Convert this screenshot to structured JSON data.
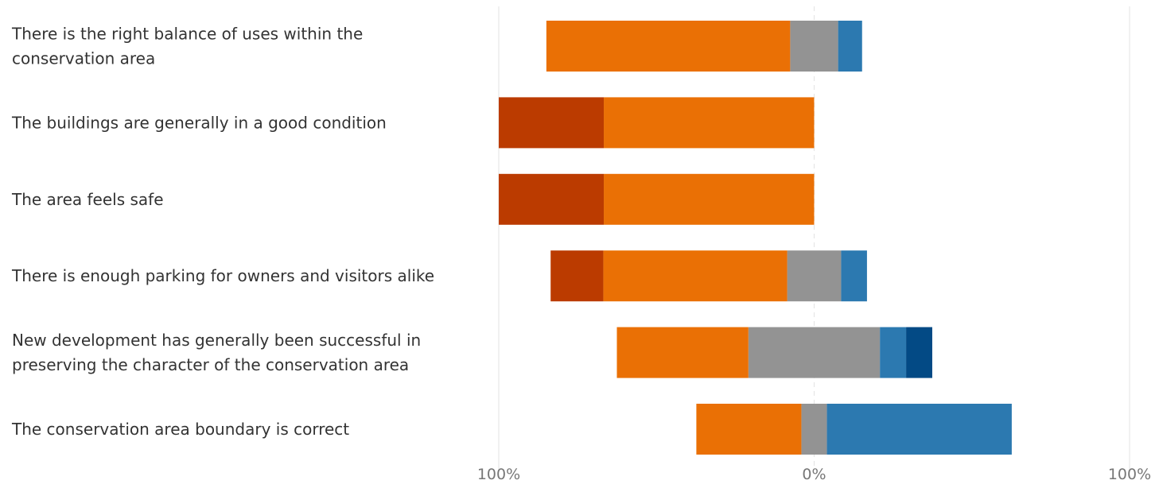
{
  "chart_data": {
    "type": "bar",
    "orientation": "horizontal",
    "stacked": "diverging",
    "categories": [
      [
        "There is the right balance of uses within the",
        "conservation area"
      ],
      [
        "The buildings are generally in a good condition"
      ],
      [
        "The area feels safe"
      ],
      [
        "There is enough parking for owners and visitors alike"
      ],
      [
        "New development has generally been successful in",
        "preserving the character of the conservation area"
      ],
      [
        "The conservation area boundary is correct"
      ]
    ],
    "series": [
      {
        "color": "#BB3B00",
        "values": [
          0,
          33.3,
          33.3,
          16.7,
          0,
          0
        ],
        "side": "negative"
      },
      {
        "color": "#EA7005",
        "values": [
          77.3,
          66.7,
          66.7,
          58.3,
          41.7,
          33.3
        ],
        "side": "negative"
      },
      {
        "color": "#939393",
        "values": [
          15.2,
          0,
          0,
          17.1,
          41.7,
          8.1
        ],
        "split": true
      },
      {
        "color": "#2C79B0",
        "values": [
          7.6,
          0,
          0,
          8.2,
          8.3,
          58.6
        ],
        "side": "positive"
      },
      {
        "color": "#034A85",
        "values": [
          0,
          0,
          0,
          0,
          8.3,
          0
        ],
        "side": "positive"
      }
    ],
    "xlim": [
      -100,
      100
    ],
    "ticks": [
      "100%",
      "0%",
      "100%"
    ],
    "grid": true,
    "colors": {
      "gridline": "#e3e3e3",
      "zeroline": "#e3e3e3"
    }
  }
}
